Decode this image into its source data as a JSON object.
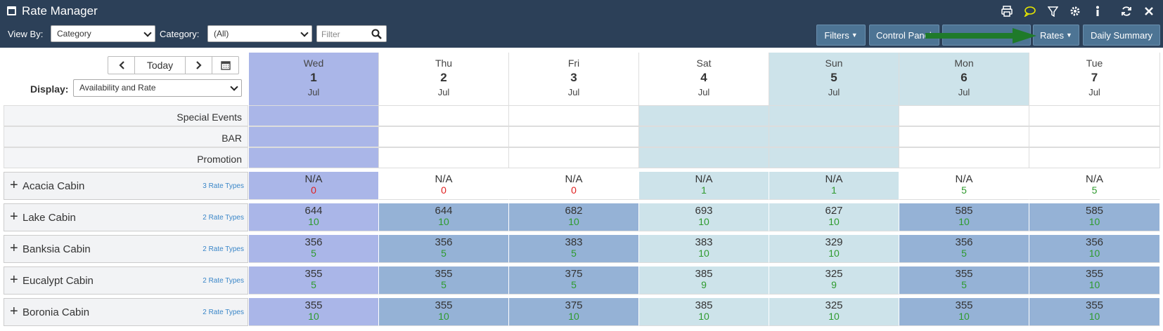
{
  "app": {
    "title": "Rate Manager"
  },
  "toolbar": {
    "view_by_label": "View By:",
    "view_by_value": "Category",
    "category_label": "Category:",
    "category_value": "(All)",
    "filter_placeholder": "Filter",
    "buttons": {
      "filters": "Filters",
      "control_panel": "Control Panel",
      "rates": "Rates",
      "daily_summary": "Daily Summary"
    }
  },
  "nav": {
    "today": "Today",
    "display_label": "Display:",
    "display_value": "Availability and Rate"
  },
  "days": [
    {
      "name": "Wed",
      "date": "1",
      "month": "Jul"
    },
    {
      "name": "Thu",
      "date": "2",
      "month": "Jul"
    },
    {
      "name": "Fri",
      "date": "3",
      "month": "Jul"
    },
    {
      "name": "Sat",
      "date": "4",
      "month": "Jul"
    },
    {
      "name": "Sun",
      "date": "5",
      "month": "Jul"
    },
    {
      "name": "Mon",
      "date": "6",
      "month": "Jul"
    },
    {
      "name": "Tue",
      "date": "7",
      "month": "Jul"
    }
  ],
  "event_rows": [
    "Special Events",
    "BAR",
    "Promotion"
  ],
  "categories": [
    {
      "name": "Acacia Cabin",
      "rate_types": "3 Rate Types",
      "cells": [
        [
          "N/A",
          "0"
        ],
        [
          "N/A",
          "0"
        ],
        [
          "N/A",
          "0"
        ],
        [
          "N/A",
          "1"
        ],
        [
          "N/A",
          "1"
        ],
        [
          "N/A",
          "5"
        ],
        [
          "N/A",
          "5"
        ]
      ]
    },
    {
      "name": "Lake Cabin",
      "rate_types": "2 Rate Types",
      "cells": [
        [
          "644",
          "10"
        ],
        [
          "644",
          "10"
        ],
        [
          "682",
          "10"
        ],
        [
          "693",
          "10"
        ],
        [
          "627",
          "10"
        ],
        [
          "585",
          "10"
        ],
        [
          "585",
          "10"
        ]
      ]
    },
    {
      "name": "Banksia Cabin",
      "rate_types": "2 Rate Types",
      "cells": [
        [
          "356",
          "5"
        ],
        [
          "356",
          "5"
        ],
        [
          "383",
          "5"
        ],
        [
          "383",
          "10"
        ],
        [
          "329",
          "10"
        ],
        [
          "356",
          "5"
        ],
        [
          "356",
          "10"
        ]
      ]
    },
    {
      "name": "Eucalypt Cabin",
      "rate_types": "2 Rate Types",
      "cells": [
        [
          "355",
          "5"
        ],
        [
          "355",
          "5"
        ],
        [
          "375",
          "5"
        ],
        [
          "385",
          "9"
        ],
        [
          "325",
          "9"
        ],
        [
          "355",
          "5"
        ],
        [
          "355",
          "10"
        ]
      ]
    },
    {
      "name": "Boronia Cabin",
      "rate_types": "2 Rate Types",
      "cells": [
        [
          "355",
          "10"
        ],
        [
          "355",
          "10"
        ],
        [
          "375",
          "10"
        ],
        [
          "385",
          "10"
        ],
        [
          "325",
          "10"
        ],
        [
          "355",
          "10"
        ],
        [
          "355",
          "10"
        ]
      ]
    }
  ],
  "colors": {
    "header_bg": "#2c4058",
    "today_col": "#aab6e8",
    "weekend_col": "#cde3ea",
    "rate_cell": "#95b2d6",
    "avail_green": "#2e9a2e",
    "avail_red": "#e02020",
    "arrow_green": "#1f7a2a"
  },
  "icons": [
    "calendar-icon",
    "print-icon",
    "chat-icon",
    "filter-icon",
    "gear-icon",
    "info-icon",
    "refresh-icon",
    "close-icon",
    "chevron-left-icon",
    "chevron-right-icon",
    "search-icon",
    "plus-icon"
  ]
}
